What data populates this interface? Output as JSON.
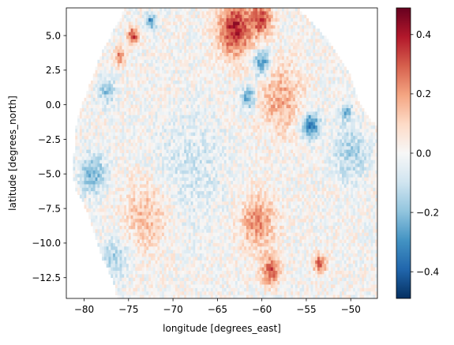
{
  "chart_data": {
    "type": "heatmap",
    "title": "",
    "xlabel": "longitude [degrees_east]",
    "ylabel": "latitude [degrees_north]",
    "xlim": [
      -82,
      -47
    ],
    "ylim": [
      -14,
      7
    ],
    "xticks": [
      -80,
      -75,
      -70,
      -65,
      -60,
      -55,
      -50
    ],
    "xtick_labels": [
      "−80",
      "−75",
      "−70",
      "−65",
      "−60",
      "−55",
      "−50"
    ],
    "yticks": [
      5.0,
      2.5,
      0.0,
      -2.5,
      -5.0,
      -7.5,
      -10.0,
      -12.5
    ],
    "ytick_labels": [
      "5.0",
      "2.5",
      "0.0",
      "−2.5",
      "−5.0",
      "−7.5",
      "−10.0",
      "−12.5"
    ],
    "colorbar": {
      "colormap": "RdBu_r",
      "range": [
        -0.49,
        0.49
      ],
      "ticks": [
        0.4,
        0.2,
        0.0,
        -0.2,
        -0.4
      ],
      "tick_labels": [
        "0.4",
        "0.2",
        "0.0",
        "−0.2",
        "−0.4"
      ]
    },
    "grid_resolution_degrees": 0.25,
    "valid_region_boundary": {
      "west_edge": [
        [
          7.0,
          -75.3
        ],
        [
          6.0,
          -76.2
        ],
        [
          5.0,
          -77.0
        ],
        [
          4.0,
          -77.8
        ],
        [
          3.0,
          -78.5
        ],
        [
          2.0,
          -79.0
        ],
        [
          1.0,
          -79.6
        ],
        [
          0.0,
          -80.2
        ],
        [
          -1.0,
          -80.7
        ],
        [
          -2.0,
          -81.0
        ],
        [
          -3.0,
          -81.0
        ],
        [
          -4.0,
          -81.2
        ],
        [
          -5.0,
          -81.3
        ],
        [
          -6.0,
          -81.0
        ],
        [
          -7.0,
          -80.2
        ],
        [
          -8.0,
          -79.5
        ],
        [
          -9.0,
          -79.0
        ],
        [
          -10.0,
          -78.5
        ],
        [
          -11.0,
          -78.0
        ],
        [
          -12.0,
          -77.2
        ],
        [
          -13.0,
          -76.6
        ],
        [
          -14.0,
          -76.3
        ]
      ],
      "north_edge_lon": [
        -75.3,
        -56.0
      ],
      "east_edge": [
        [
          7.0,
          -56.0
        ],
        [
          6.0,
          -54.5
        ],
        [
          5.0,
          -53.0
        ],
        [
          4.0,
          -52.0
        ],
        [
          3.0,
          -51.0
        ],
        [
          2.0,
          -50.0
        ],
        [
          1.0,
          -49.5
        ],
        [
          0.0,
          -49.0
        ],
        [
          -1.0,
          -48.0
        ],
        [
          -1.5,
          -47.0
        ]
      ]
    },
    "anomalies": [
      {
        "lat": 5.5,
        "lon": -63.0,
        "value": 0.38,
        "radius_deg": 2.0
      },
      {
        "lat": 6.2,
        "lon": -60.0,
        "value": 0.3,
        "radius_deg": 1.2
      },
      {
        "lat": 5.0,
        "lon": -74.5,
        "value": 0.35,
        "radius_deg": 0.6
      },
      {
        "lat": 3.5,
        "lon": -76.0,
        "value": 0.25,
        "radius_deg": 0.6
      },
      {
        "lat": 6.0,
        "lon": -72.5,
        "value": -0.3,
        "radius_deg": 0.6
      },
      {
        "lat": 3.0,
        "lon": -60.0,
        "value": -0.3,
        "radius_deg": 1.0
      },
      {
        "lat": 0.5,
        "lon": -61.5,
        "value": -0.28,
        "radius_deg": 0.8
      },
      {
        "lat": -1.5,
        "lon": -54.5,
        "value": -0.35,
        "radius_deg": 1.0
      },
      {
        "lat": -0.5,
        "lon": -50.5,
        "value": -0.25,
        "radius_deg": 0.6
      },
      {
        "lat": 0.5,
        "lon": -58.0,
        "value": 0.18,
        "radius_deg": 2.5
      },
      {
        "lat": -5.0,
        "lon": -79.0,
        "value": -0.22,
        "radius_deg": 1.5
      },
      {
        "lat": -8.5,
        "lon": -60.5,
        "value": 0.22,
        "radius_deg": 2.0
      },
      {
        "lat": -12.0,
        "lon": -59.0,
        "value": 0.3,
        "radius_deg": 1.0
      },
      {
        "lat": -11.5,
        "lon": -53.5,
        "value": 0.3,
        "radius_deg": 0.7
      },
      {
        "lat": -8.0,
        "lon": -73.0,
        "value": 0.15,
        "radius_deg": 2.5
      },
      {
        "lat": -4.5,
        "lon": -68.0,
        "value": -0.08,
        "radius_deg": 4.0
      },
      {
        "lat": -11.0,
        "lon": -76.5,
        "value": -0.15,
        "radius_deg": 1.5
      },
      {
        "lat": -3.5,
        "lon": -50.0,
        "value": -0.15,
        "radius_deg": 2.0
      },
      {
        "lat": 1.0,
        "lon": -77.5,
        "value": -0.18,
        "radius_deg": 1.0
      }
    ]
  }
}
